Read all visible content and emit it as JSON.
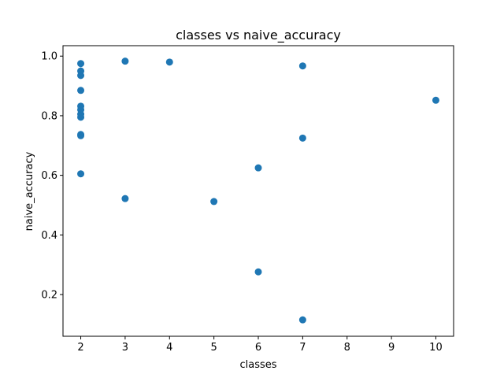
{
  "chart_data": {
    "type": "scatter",
    "title": "classes vs naive_accuracy",
    "xlabel": "classes",
    "ylabel": "naive_accuracy",
    "xlim": [
      1.6,
      10.4
    ],
    "ylim": [
      0.06,
      1.035
    ],
    "xticks": [
      2,
      3,
      4,
      5,
      6,
      7,
      8,
      9,
      10
    ],
    "yticks": [
      0.2,
      0.4,
      0.6,
      0.8,
      1.0
    ],
    "ytick_labels": [
      "0.2",
      "0.4",
      "0.6",
      "0.8",
      "1.0"
    ],
    "grid": false,
    "marker_color": "#1f77b4",
    "points": [
      {
        "x": 2,
        "y": 0.975
      },
      {
        "x": 2,
        "y": 0.95
      },
      {
        "x": 2,
        "y": 0.935
      },
      {
        "x": 2,
        "y": 0.885
      },
      {
        "x": 2,
        "y": 0.832
      },
      {
        "x": 2,
        "y": 0.82
      },
      {
        "x": 2,
        "y": 0.805
      },
      {
        "x": 2,
        "y": 0.795
      },
      {
        "x": 2,
        "y": 0.737
      },
      {
        "x": 2,
        "y": 0.733
      },
      {
        "x": 2,
        "y": 0.605
      },
      {
        "x": 3,
        "y": 0.983
      },
      {
        "x": 3,
        "y": 0.522
      },
      {
        "x": 4,
        "y": 0.98
      },
      {
        "x": 5,
        "y": 0.512
      },
      {
        "x": 6,
        "y": 0.625
      },
      {
        "x": 6,
        "y": 0.276
      },
      {
        "x": 7,
        "y": 0.967
      },
      {
        "x": 7,
        "y": 0.725
      },
      {
        "x": 7,
        "y": 0.115
      },
      {
        "x": 10,
        "y": 0.852
      }
    ]
  }
}
